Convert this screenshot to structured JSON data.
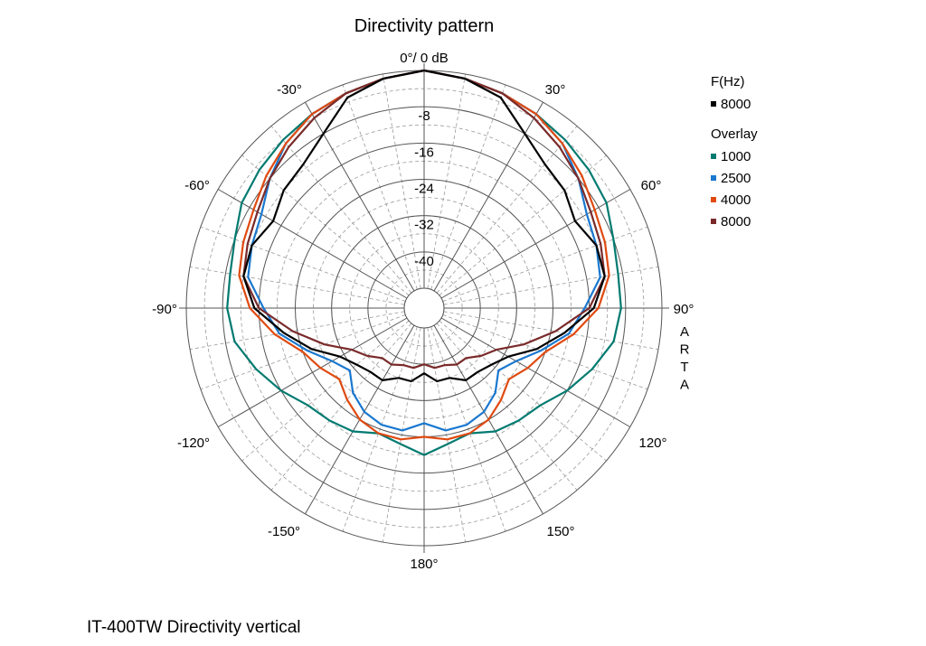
{
  "chart_data": {
    "type": "polar",
    "title": "Directivity pattern",
    "top_label": "0°/ 0 dB",
    "angle_labels": [
      "-30°",
      "30°",
      "-60°",
      "60°",
      "-90°",
      "90°",
      "-120°",
      "120°",
      "-150°",
      "150°",
      "180°"
    ],
    "ring_labels": [
      "-8",
      "-16",
      "-24",
      "-32",
      "-40"
    ],
    "r_range_db": [
      -48,
      0
    ],
    "grid": true,
    "watermark": "ARTA",
    "legend": {
      "position": "top-right",
      "main_header": "F(Hz)",
      "overlay_header": "Overlay"
    },
    "series": [
      {
        "name": "8000",
        "group": "main",
        "color": "#000000",
        "points": [
          [
            0,
            0
          ],
          [
            10,
            -1
          ],
          [
            20,
            -3
          ],
          [
            30,
            -8
          ],
          [
            40,
            -11
          ],
          [
            50,
            -12
          ],
          [
            60,
            -14
          ],
          [
            70,
            -12
          ],
          [
            80,
            -12
          ],
          [
            90,
            -15
          ],
          [
            100,
            -21
          ],
          [
            110,
            -26
          ],
          [
            120,
            -31
          ],
          [
            130,
            -33
          ],
          [
            140,
            -34
          ],
          [
            150,
            -34
          ],
          [
            160,
            -36
          ],
          [
            170,
            -36
          ],
          [
            180,
            -38
          ],
          [
            190,
            -36
          ],
          [
            200,
            -36
          ],
          [
            210,
            -34
          ],
          [
            220,
            -34
          ],
          [
            230,
            -33
          ],
          [
            240,
            -31
          ],
          [
            250,
            -26
          ],
          [
            260,
            -21
          ],
          [
            270,
            -15
          ],
          [
            280,
            -12
          ],
          [
            290,
            -12
          ],
          [
            300,
            -14
          ],
          [
            310,
            -12
          ],
          [
            320,
            -11
          ],
          [
            330,
            -8
          ],
          [
            340,
            -3
          ],
          [
            350,
            -1
          ]
        ]
      },
      {
        "name": "1000",
        "group": "overlay",
        "color": "#007a70",
        "points": [
          [
            0,
            0
          ],
          [
            10,
            -1
          ],
          [
            20,
            -2
          ],
          [
            30,
            -3
          ],
          [
            40,
            -4
          ],
          [
            50,
            -5
          ],
          [
            60,
            -6
          ],
          [
            70,
            -8
          ],
          [
            80,
            -9
          ],
          [
            90,
            -9
          ],
          [
            100,
            -10
          ],
          [
            110,
            -13
          ],
          [
            120,
            -16
          ],
          [
            130,
            -19
          ],
          [
            140,
            -20
          ],
          [
            150,
            -21
          ],
          [
            160,
            -23
          ],
          [
            170,
            -22
          ],
          [
            180,
            -20
          ],
          [
            190,
            -22
          ],
          [
            200,
            -23
          ],
          [
            210,
            -21
          ],
          [
            220,
            -20
          ],
          [
            230,
            -19
          ],
          [
            240,
            -16
          ],
          [
            250,
            -13
          ],
          [
            260,
            -10
          ],
          [
            270,
            -9
          ],
          [
            280,
            -9
          ],
          [
            290,
            -8
          ],
          [
            300,
            -6
          ],
          [
            310,
            -5
          ],
          [
            320,
            -4
          ],
          [
            330,
            -3
          ],
          [
            340,
            -2
          ],
          [
            350,
            -1
          ]
        ]
      },
      {
        "name": "2500",
        "group": "overlay",
        "color": "#1a78cf",
        "points": [
          [
            0,
            0
          ],
          [
            10,
            -1
          ],
          [
            20,
            -2
          ],
          [
            30,
            -3
          ],
          [
            40,
            -5
          ],
          [
            50,
            -8
          ],
          [
            60,
            -11
          ],
          [
            70,
            -12
          ],
          [
            80,
            -13
          ],
          [
            90,
            -17
          ],
          [
            100,
            -20
          ],
          [
            110,
            -25
          ],
          [
            120,
            -29
          ],
          [
            130,
            -31
          ],
          [
            140,
            -28
          ],
          [
            150,
            -26
          ],
          [
            160,
            -25
          ],
          [
            170,
            -25
          ],
          [
            180,
            -27
          ],
          [
            190,
            -25
          ],
          [
            200,
            -25
          ],
          [
            210,
            -26
          ],
          [
            220,
            -28
          ],
          [
            230,
            -31
          ],
          [
            240,
            -29
          ],
          [
            250,
            -25
          ],
          [
            260,
            -20
          ],
          [
            270,
            -17
          ],
          [
            280,
            -13
          ],
          [
            290,
            -12
          ],
          [
            300,
            -11
          ],
          [
            310,
            -8
          ],
          [
            320,
            -5
          ],
          [
            330,
            -3
          ],
          [
            340,
            -2
          ],
          [
            350,
            -1
          ]
        ]
      },
      {
        "name": "4000",
        "group": "overlay",
        "color": "#e04a10",
        "points": [
          [
            0,
            0
          ],
          [
            10,
            -1
          ],
          [
            20,
            -2
          ],
          [
            30,
            -3
          ],
          [
            40,
            -5
          ],
          [
            50,
            -7
          ],
          [
            60,
            -9
          ],
          [
            70,
            -10
          ],
          [
            80,
            -11
          ],
          [
            90,
            -14
          ],
          [
            100,
            -19
          ],
          [
            110,
            -24
          ],
          [
            120,
            -26
          ],
          [
            130,
            -28
          ],
          [
            140,
            -26
          ],
          [
            150,
            -24
          ],
          [
            160,
            -23
          ],
          [
            170,
            -23
          ],
          [
            180,
            -24
          ],
          [
            190,
            -23
          ],
          [
            200,
            -23
          ],
          [
            210,
            -24
          ],
          [
            220,
            -26
          ],
          [
            230,
            -28
          ],
          [
            240,
            -26
          ],
          [
            250,
            -24
          ],
          [
            260,
            -19
          ],
          [
            270,
            -14
          ],
          [
            280,
            -11
          ],
          [
            290,
            -10
          ],
          [
            300,
            -9
          ],
          [
            310,
            -7
          ],
          [
            320,
            -5
          ],
          [
            330,
            -3
          ],
          [
            340,
            -2
          ],
          [
            350,
            -1
          ]
        ]
      },
      {
        "name": "8000",
        "group": "overlay",
        "color": "#7a2a2a",
        "points": [
          [
            0,
            0
          ],
          [
            10,
            -1
          ],
          [
            20,
            -2
          ],
          [
            30,
            -4
          ],
          [
            40,
            -6
          ],
          [
            50,
            -8
          ],
          [
            60,
            -10
          ],
          [
            70,
            -11
          ],
          [
            80,
            -12
          ],
          [
            90,
            -16
          ],
          [
            100,
            -23
          ],
          [
            110,
            -29
          ],
          [
            120,
            -34
          ],
          [
            130,
            -36
          ],
          [
            140,
            -38
          ],
          [
            150,
            -38
          ],
          [
            160,
            -39
          ],
          [
            170,
            -39
          ],
          [
            180,
            -40
          ],
          [
            190,
            -39
          ],
          [
            200,
            -39
          ],
          [
            210,
            -38
          ],
          [
            220,
            -38
          ],
          [
            230,
            -36
          ],
          [
            240,
            -34
          ],
          [
            250,
            -29
          ],
          [
            260,
            -23
          ],
          [
            270,
            -16
          ],
          [
            280,
            -12
          ],
          [
            290,
            -11
          ],
          [
            300,
            -10
          ],
          [
            310,
            -8
          ],
          [
            320,
            -6
          ],
          [
            330,
            -4
          ],
          [
            340,
            -2
          ],
          [
            350,
            -1
          ]
        ]
      }
    ]
  },
  "caption": "IT-400TW Directivity vertical"
}
